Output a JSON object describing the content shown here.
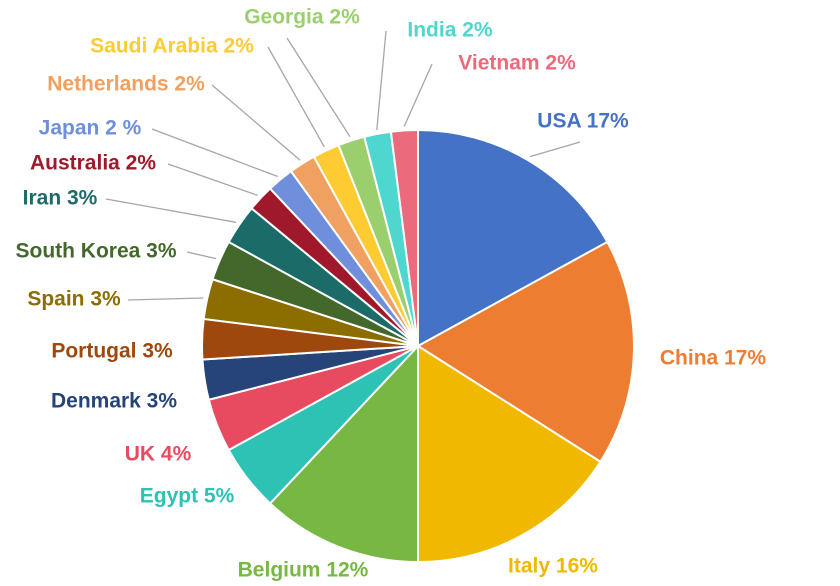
{
  "chart_data": {
    "type": "pie",
    "title": "",
    "categories": [
      "USA",
      "China",
      "Italy",
      "Belgium",
      "Egypt",
      "UK",
      "Denmark",
      "Portugal",
      "Spain",
      "South Korea",
      "Iran",
      "Australia",
      "Japan",
      "Netherlands",
      "Saudi Arabia",
      "Georgia",
      "India",
      "Vietnam"
    ],
    "values": [
      17,
      17,
      16,
      12,
      5,
      4,
      3,
      3,
      3,
      3,
      3,
      2,
      2,
      2,
      2,
      2,
      2,
      2
    ],
    "labels": [
      "USA 17%",
      "China 17%",
      "Italy 16%",
      "Belgium 12%",
      "Egypt 5%",
      "UK 4%",
      "Denmark 3%",
      "Portugal 3%",
      "Spain 3%",
      "South Korea 3%",
      "Iran 3%",
      "Australia 2%",
      "Japan 2 %",
      "Netherlands 2%",
      "Saudi Arabia 2%",
      "Georgia 2%",
      "India 2%",
      "Vietnam 2%"
    ],
    "colors": [
      "#4472C4",
      "#ED7D31",
      "#F1B800",
      "#76B843",
      "#2EC2B4",
      "#E84A5F",
      "#264478",
      "#9E480E",
      "#8C6D00",
      "#43682B",
      "#1B6B68",
      "#A0192B",
      "#6F8FDC",
      "#F0A060",
      "#FFCB33",
      "#9BCF6E",
      "#4DD7CF",
      "#EB6A7B"
    ],
    "legend": "none"
  }
}
